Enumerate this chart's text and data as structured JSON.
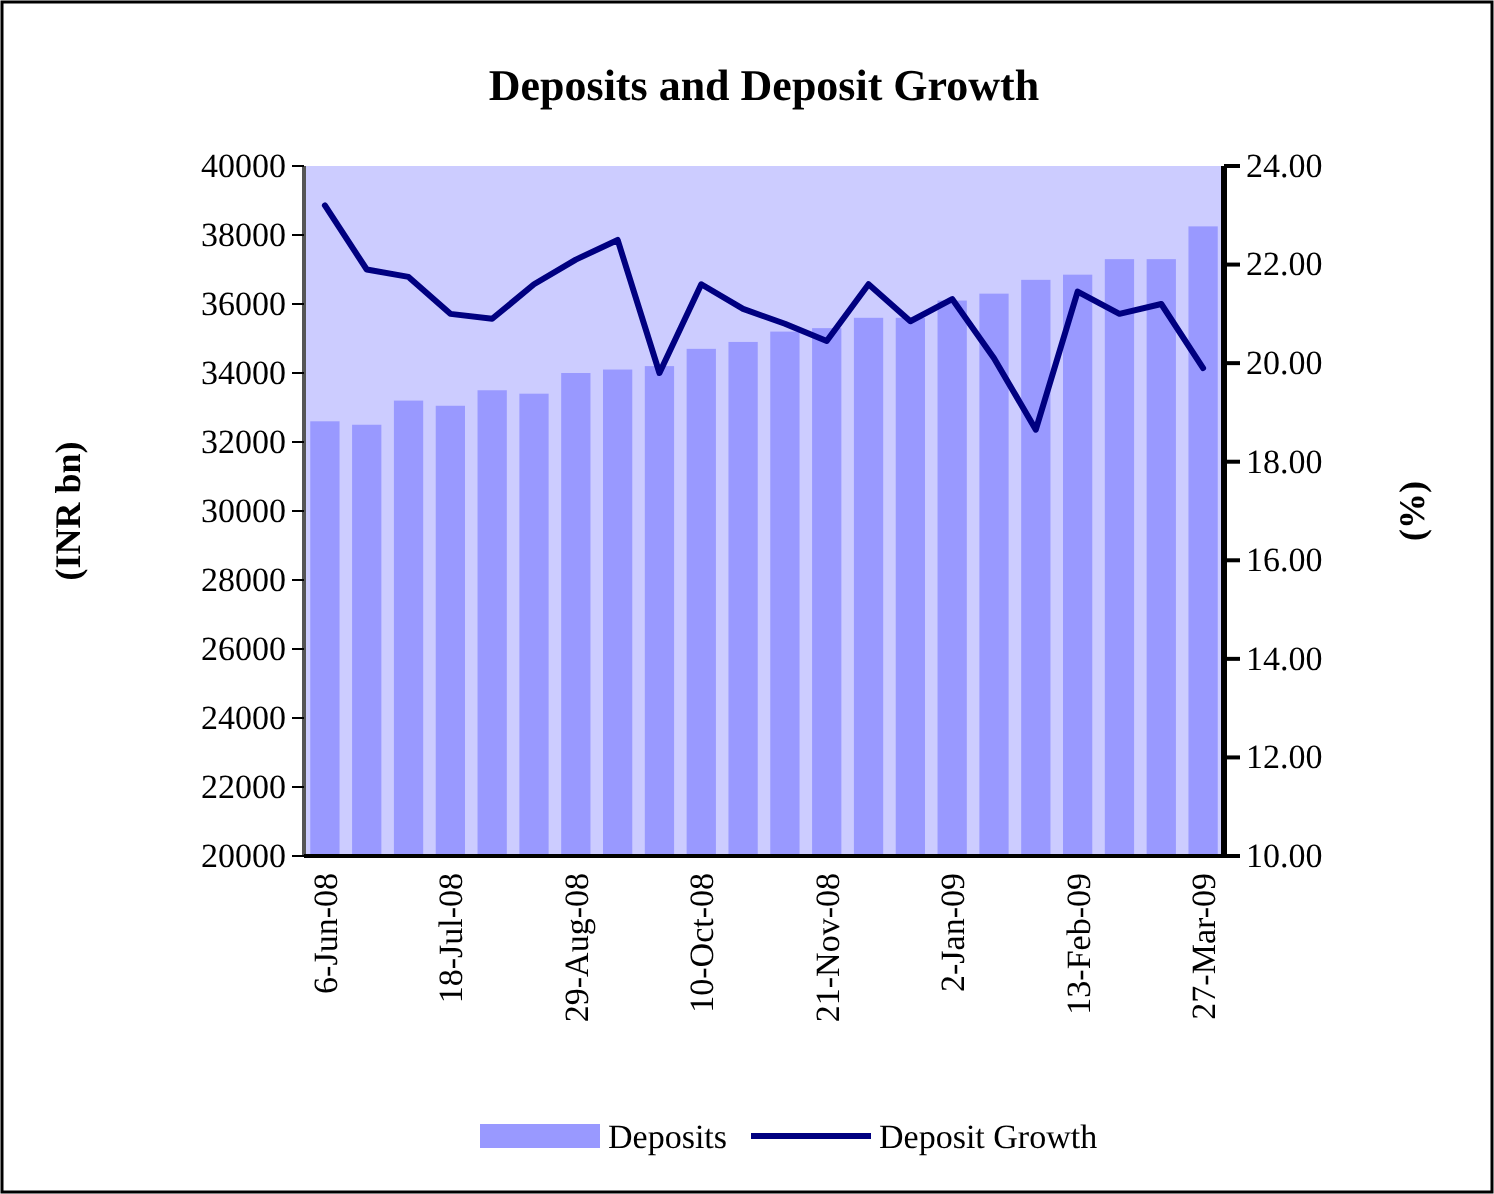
{
  "chart_data": {
    "type": "bar",
    "title": "Deposits and Deposit Growth",
    "ylabel": "(INR bn)",
    "y2label": "(%)",
    "categories": [
      "6-Jun-08",
      null,
      null,
      "18-Jul-08",
      null,
      null,
      "29-Aug-08",
      null,
      null,
      "10-Oct-08",
      null,
      null,
      "21-Nov-08",
      null,
      null,
      "2-Jan-09",
      null,
      null,
      "13-Feb-09",
      null,
      null,
      "27-Mar-09"
    ],
    "series": [
      {
        "name": "Deposits",
        "color": "#9999ff",
        "values": [
          32600,
          32500,
          33200,
          33050,
          33500,
          33400,
          34000,
          34100,
          34200,
          34700,
          34900,
          35200,
          35300,
          35600,
          35600,
          36100,
          36300,
          36700,
          36850,
          37300,
          37300,
          38250
        ]
      },
      {
        "name": "Deposit Growth",
        "type": "line",
        "axis": "y2",
        "color": "#000080",
        "values": [
          23.2,
          21.9,
          21.75,
          21.0,
          20.9,
          21.6,
          22.1,
          22.5,
          19.8,
          21.6,
          21.1,
          20.8,
          20.45,
          21.6,
          20.85,
          21.3,
          20.1,
          18.65,
          21.45,
          21.0,
          21.2,
          19.9
        ]
      }
    ],
    "ylim": [
      20000,
      40000
    ],
    "yticks": [
      20000,
      22000,
      24000,
      26000,
      28000,
      30000,
      32000,
      34000,
      36000,
      38000,
      40000
    ],
    "y2lim": [
      10,
      24
    ],
    "y2ticks": [
      {
        "value": 10,
        "label": "10.00"
      },
      {
        "value": 12,
        "label": "12.00"
      },
      {
        "value": 14,
        "label": "14.00"
      },
      {
        "value": 16,
        "label": "16.00"
      },
      {
        "value": 18,
        "label": "18.00"
      },
      {
        "value": 20,
        "label": "20.00"
      },
      {
        "value": 22,
        "label": "22.00"
      },
      {
        "value": 24,
        "label": "24.00"
      }
    ],
    "legend": "bottom",
    "line_style": "solid",
    "marker": "none"
  }
}
